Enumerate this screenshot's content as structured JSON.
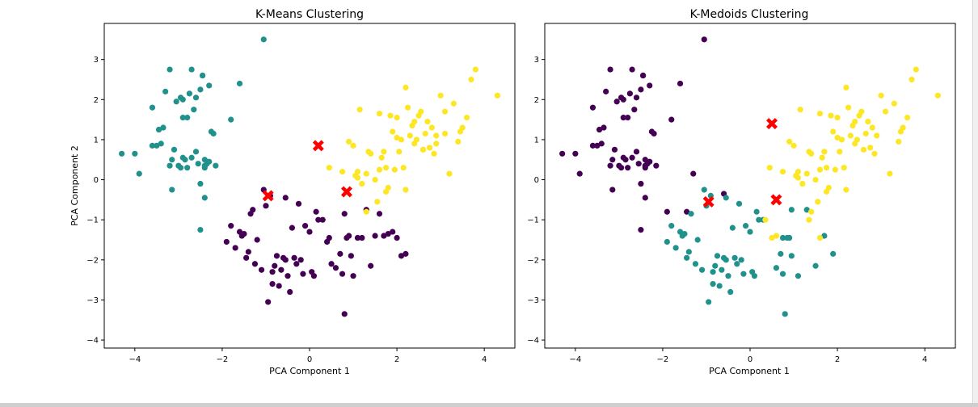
{
  "colors": {
    "cluster_dark": "#440154",
    "cluster_teal": "#21918c",
    "cluster_yellow": "#fde725",
    "centroid": "#ff0000"
  },
  "chart_data": [
    {
      "type": "scatter",
      "title": "K-Means Clustering",
      "xlabel": "PCA Component 1",
      "ylabel": "PCA Component 2",
      "xlim": [
        -4.7,
        4.7
      ],
      "ylim": [
        -4.2,
        3.9
      ],
      "xticks": [
        -4,
        -2,
        0,
        2,
        4
      ],
      "yticks": [
        -4,
        -3,
        -2,
        -1,
        0,
        1,
        2,
        3
      ],
      "grid": false,
      "series": [
        {
          "color": "#21918c",
          "x": [
            -4.3,
            -4.0,
            -3.9,
            -3.6,
            -3.5,
            -3.45,
            -3.4,
            -3.3,
            -3.35,
            -3.2,
            -3.15,
            -3.1,
            -3.0,
            -2.95,
            -2.9,
            -2.9,
            -2.85,
            -2.8,
            -2.75,
            -2.7,
            -2.7,
            -2.65,
            -2.6,
            -2.6,
            -2.55,
            -2.5,
            -2.45,
            -2.45,
            -2.4,
            -2.4,
            -2.35,
            -2.3,
            -2.25,
            -2.2,
            -2.15,
            -3.2,
            -2.5,
            -1.6,
            -1.8,
            -2.4,
            -2.95,
            -3.15,
            -1.05,
            -2.3,
            -3.05,
            -2.8,
            -2.5,
            -2.4,
            -2.9,
            -3.6
          ],
          "y": [
            0.65,
            0.65,
            0.15,
            1.8,
            0.85,
            1.25,
            0.9,
            2.2,
            1.3,
            2.75,
            -0.25,
            0.75,
            0.35,
            2.05,
            1.55,
            2.0,
            0.5,
            1.55,
            2.15,
            2.75,
            0.55,
            1.75,
            0.7,
            2.05,
            0.4,
            2.25,
            2.6,
            2.6,
            0.5,
            0.35,
            0.4,
            2.35,
            1.2,
            1.15,
            0.35,
            0.35,
            -1.25,
            2.4,
            1.5,
            -0.45,
            0.3,
            0.5,
            3.5,
            0.45,
            1.95,
            0.3,
            -0.1,
            0.3,
            0.55,
            0.85
          ]
        },
        {
          "color": "#440154",
          "x": [
            -1.9,
            -1.8,
            -1.7,
            -1.6,
            -1.55,
            -1.5,
            -1.45,
            -1.4,
            -1.35,
            -1.3,
            -1.25,
            -1.2,
            -1.1,
            -1.0,
            -0.9,
            -0.85,
            -0.8,
            -0.75,
            -0.7,
            -0.65,
            -0.6,
            -0.55,
            -0.5,
            -0.45,
            -0.4,
            -0.35,
            -0.3,
            -0.25,
            -0.2,
            -0.15,
            -0.1,
            0.0,
            0.05,
            0.1,
            0.15,
            0.2,
            0.3,
            0.4,
            0.45,
            0.5,
            0.6,
            0.7,
            0.75,
            0.8,
            0.85,
            0.9,
            0.95,
            1.0,
            1.1,
            1.2,
            1.3,
            1.4,
            1.5,
            1.6,
            1.7,
            1.8,
            1.9,
            2.0,
            2.1,
            2.2,
            -0.95,
            -0.55,
            -1.05,
            -0.85,
            0.8
          ],
          "y": [
            -1.55,
            -1.15,
            -1.7,
            -1.3,
            -1.4,
            -1.35,
            -1.95,
            -1.8,
            -0.85,
            -0.75,
            -2.1,
            -1.5,
            -2.25,
            -0.65,
            -0.4,
            -2.3,
            -2.15,
            -1.9,
            -2.65,
            -2.25,
            -1.95,
            -2.0,
            -2.4,
            -2.8,
            -1.2,
            -1.95,
            -2.1,
            -0.6,
            -2.0,
            -2.35,
            -1.15,
            -1.3,
            -2.3,
            -2.4,
            -0.8,
            -1.0,
            -1.0,
            -1.55,
            -1.45,
            -2.1,
            -2.2,
            -1.85,
            -2.35,
            -3.35,
            -1.45,
            -1.4,
            -1.9,
            -2.4,
            -1.45,
            -1.45,
            -0.75,
            -2.15,
            -1.4,
            -0.85,
            -1.4,
            -1.35,
            -1.3,
            -1.45,
            -1.9,
            -1.85,
            -3.05,
            -0.45,
            -0.25,
            -2.6,
            -0.85
          ]
        },
        {
          "color": "#fde725",
          "x": [
            0.45,
            0.75,
            0.9,
            1.0,
            1.05,
            1.1,
            1.15,
            1.2,
            1.3,
            1.35,
            1.4,
            1.5,
            1.55,
            1.6,
            1.65,
            1.7,
            1.75,
            1.8,
            1.85,
            1.9,
            1.95,
            2.0,
            2.05,
            2.1,
            2.15,
            2.2,
            2.25,
            2.3,
            2.35,
            2.4,
            2.45,
            2.5,
            2.55,
            2.6,
            2.65,
            2.7,
            2.75,
            2.8,
            2.85,
            2.9,
            3.0,
            3.1,
            3.2,
            3.3,
            3.4,
            3.5,
            3.6,
            3.7,
            3.8,
            4.3,
            1.1,
            1.75,
            2.2,
            2.0,
            1.6,
            2.4,
            2.6,
            3.1,
            3.45,
            2.9,
            1.3
          ],
          "y": [
            0.3,
            0.2,
            0.95,
            0.85,
            0.1,
            0.2,
            1.75,
            -0.1,
            0.15,
            0.7,
            0.65,
            0.0,
            -0.55,
            0.25,
            0.55,
            0.7,
            0.3,
            -0.2,
            1.6,
            1.2,
            0.25,
            1.55,
            0.7,
            1.0,
            0.3,
            2.3,
            1.8,
            1.1,
            1.35,
            0.9,
            1.0,
            1.6,
            1.7,
            0.75,
            1.15,
            1.45,
            0.8,
            1.3,
            0.65,
            1.1,
            2.1,
            1.7,
            0.15,
            1.9,
            0.95,
            1.3,
            1.55,
            2.5,
            2.75,
            2.1,
            0.05,
            -0.3,
            -0.25,
            1.05,
            1.65,
            1.45,
            0.75,
            1.15,
            1.2,
            0.9,
            -0.8
          ]
        },
        {
          "color": "#ff0000",
          "marker": "X",
          "x": [
            -0.95,
            0.2,
            0.85
          ],
          "y": [
            -0.4,
            0.85,
            -0.3
          ]
        }
      ]
    },
    {
      "type": "scatter",
      "title": "K-Medoids Clustering",
      "xlabel": "PCA Component 1",
      "ylabel": "",
      "xlim": [
        -4.7,
        4.7
      ],
      "ylim": [
        -4.2,
        3.9
      ],
      "xticks": [
        -4,
        -2,
        0,
        2,
        4
      ],
      "yticks": [
        -4,
        -3,
        -2,
        -1,
        0,
        1,
        2,
        3
      ],
      "grid": false,
      "series": [
        {
          "color": "#440154",
          "x": [
            -4.3,
            -4.0,
            -3.9,
            -3.6,
            -3.5,
            -3.45,
            -3.4,
            -3.3,
            -3.35,
            -3.2,
            -3.15,
            -3.1,
            -3.0,
            -2.95,
            -2.9,
            -2.9,
            -2.85,
            -2.8,
            -2.75,
            -2.7,
            -2.7,
            -2.65,
            -2.6,
            -2.6,
            -2.55,
            -2.5,
            -2.45,
            -2.45,
            -2.4,
            -2.4,
            -2.35,
            -2.3,
            -2.25,
            -2.2,
            -2.15,
            -3.2,
            -2.5,
            -1.6,
            -1.8,
            -2.4,
            -2.95,
            -3.15,
            -1.05,
            -2.3,
            -3.05,
            -2.8,
            -2.5,
            -2.4,
            -2.9,
            -3.6,
            -1.3,
            -0.6,
            -1.45,
            -1.9
          ],
          "y": [
            0.65,
            0.65,
            0.15,
            1.8,
            0.85,
            1.25,
            0.9,
            2.2,
            1.3,
            2.75,
            -0.25,
            0.75,
            0.35,
            2.05,
            1.55,
            2.0,
            0.5,
            1.55,
            2.15,
            2.75,
            0.55,
            1.75,
            0.7,
            2.05,
            0.4,
            2.25,
            2.6,
            2.6,
            0.5,
            0.35,
            0.4,
            2.35,
            1.2,
            1.15,
            0.35,
            0.35,
            -1.25,
            2.4,
            1.5,
            -0.45,
            0.3,
            0.5,
            3.5,
            0.45,
            1.95,
            0.3,
            -0.1,
            0.3,
            0.55,
            0.85,
            0.15,
            -0.35,
            -0.8,
            -0.8
          ]
        },
        {
          "color": "#21918c",
          "x": [
            -1.9,
            -1.8,
            -1.7,
            -1.6,
            -1.55,
            -1.5,
            -1.45,
            -1.4,
            -1.35,
            -1.25,
            -1.2,
            -1.1,
            -1.0,
            -0.9,
            -0.85,
            -0.8,
            -0.75,
            -0.7,
            -0.65,
            -0.6,
            -0.55,
            -0.5,
            -0.45,
            -0.4,
            -0.35,
            -0.3,
            -0.25,
            -0.2,
            -0.15,
            -0.1,
            0.0,
            0.05,
            0.1,
            0.15,
            0.2,
            0.3,
            0.6,
            0.7,
            0.75,
            0.8,
            0.9,
            0.95,
            1.1,
            1.3,
            1.5,
            1.7,
            1.9,
            -0.95,
            -0.55,
            -1.05,
            -0.85,
            0.85,
            0.75,
            0.95
          ],
          "y": [
            -1.55,
            -1.15,
            -1.7,
            -1.3,
            -1.4,
            -1.35,
            -1.95,
            -1.8,
            -0.85,
            -2.1,
            -1.5,
            -2.25,
            -0.65,
            -0.4,
            -2.3,
            -2.15,
            -1.9,
            -2.65,
            -2.25,
            -1.95,
            -2.0,
            -2.4,
            -2.8,
            -1.2,
            -1.95,
            -2.1,
            -0.6,
            -2.0,
            -2.35,
            -1.15,
            -1.3,
            -2.3,
            -2.4,
            -0.8,
            -1.0,
            -1.0,
            -2.2,
            -1.85,
            -2.35,
            -3.35,
            -1.45,
            -1.9,
            -2.4,
            -0.75,
            -2.15,
            -1.4,
            -1.85,
            -3.05,
            -0.45,
            -0.25,
            -2.6,
            -1.45,
            -1.45,
            -0.75
          ]
        },
        {
          "color": "#fde725",
          "x": [
            0.35,
            0.45,
            0.75,
            0.9,
            1.0,
            1.05,
            1.1,
            1.15,
            1.2,
            1.3,
            1.35,
            1.4,
            1.5,
            1.55,
            1.6,
            1.65,
            1.7,
            1.75,
            1.8,
            1.85,
            1.9,
            1.95,
            2.0,
            2.05,
            2.1,
            2.15,
            2.2,
            2.25,
            2.3,
            2.35,
            2.4,
            2.45,
            2.5,
            2.55,
            2.6,
            2.65,
            2.7,
            2.75,
            2.8,
            2.85,
            2.9,
            3.0,
            3.1,
            3.2,
            3.3,
            3.4,
            3.5,
            3.6,
            3.7,
            3.8,
            4.3,
            1.1,
            1.75,
            2.2,
            2.0,
            1.6,
            1.4,
            0.6,
            0.5,
            2.4,
            3.45,
            1.35,
            1.6
          ],
          "y": [
            -1.0,
            0.3,
            0.2,
            0.95,
            0.85,
            0.1,
            0.2,
            1.75,
            -0.1,
            0.15,
            0.7,
            0.65,
            0.0,
            -0.55,
            0.25,
            0.55,
            0.7,
            0.3,
            -0.2,
            1.6,
            1.2,
            0.25,
            1.55,
            0.7,
            1.0,
            0.3,
            2.3,
            1.8,
            1.1,
            1.35,
            0.9,
            1.0,
            1.6,
            1.7,
            0.75,
            1.15,
            1.45,
            0.8,
            1.3,
            0.65,
            1.1,
            2.1,
            1.7,
            0.15,
            1.9,
            0.95,
            1.3,
            1.55,
            2.5,
            2.75,
            2.1,
            0.05,
            -0.3,
            -0.25,
            1.05,
            1.65,
            -0.8,
            -1.4,
            -1.45,
            1.45,
            1.2,
            -1.0,
            -1.45
          ]
        },
        {
          "color": "#ff0000",
          "marker": "X",
          "x": [
            -0.95,
            0.5,
            0.6
          ],
          "y": [
            -0.55,
            1.4,
            -0.5
          ]
        }
      ]
    }
  ]
}
